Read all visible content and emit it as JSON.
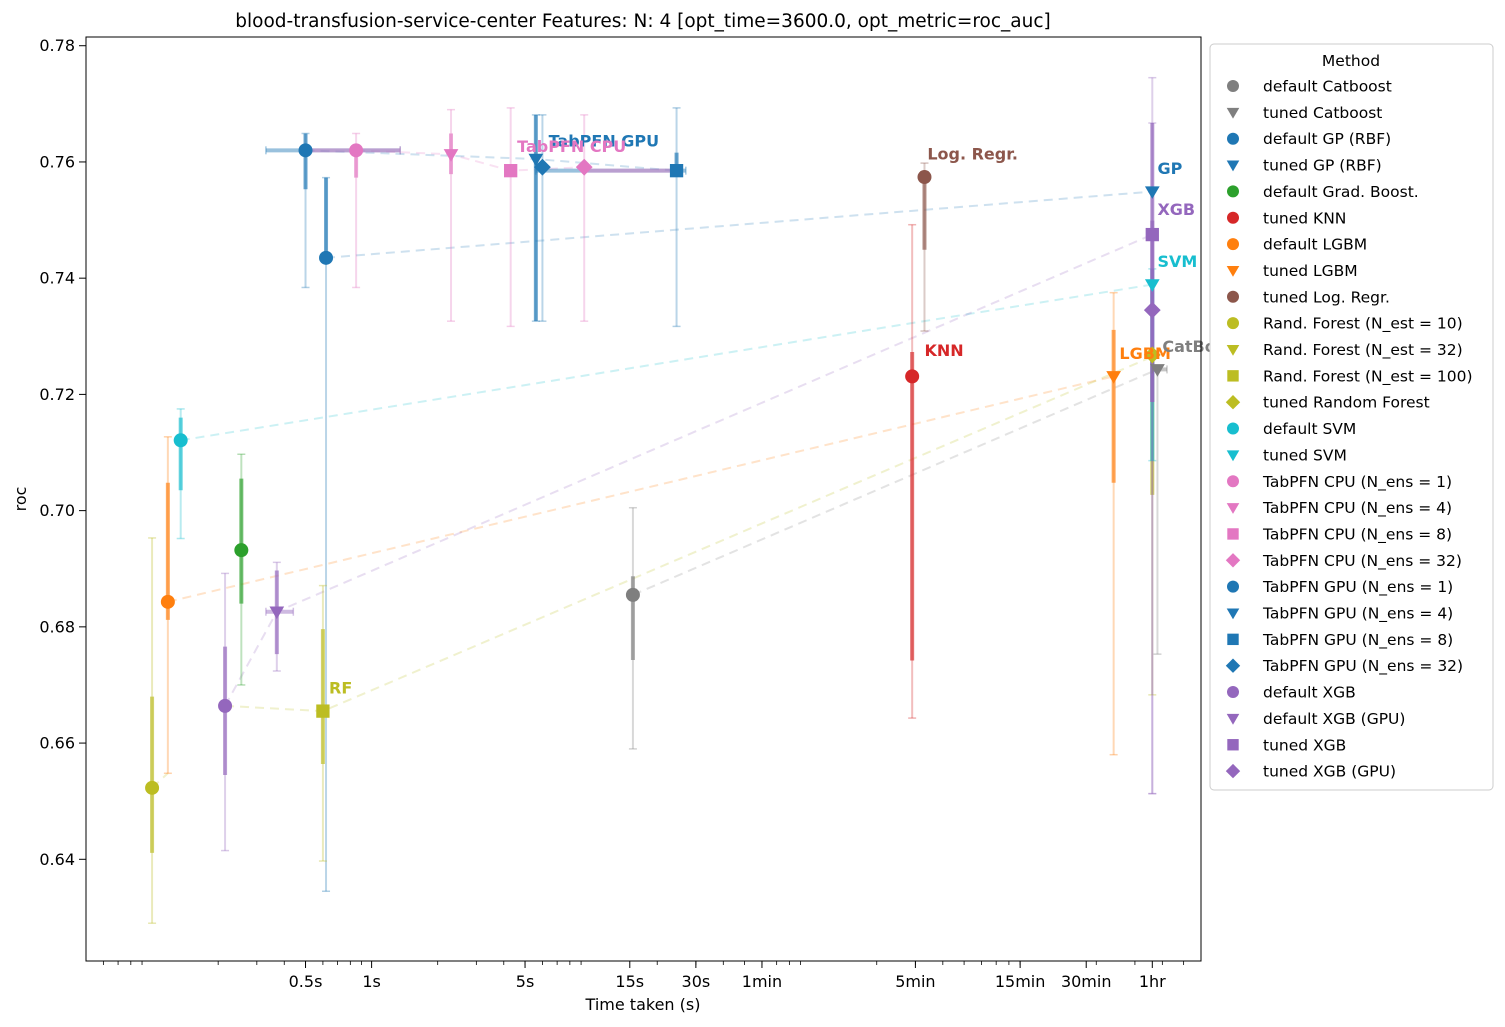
{
  "chart_data": {
    "type": "scatter",
    "title": "blood-transfusion-service-center Features: N: 4 [opt_time=3600.0, opt_metric=roc_auc]",
    "xlabel": "Time taken (s)",
    "ylabel": "roc",
    "x_scale": "log",
    "xlim": [
      0.05,
      6000
    ],
    "ylim": [
      0.6225,
      0.7815
    ],
    "grid": false,
    "x_ticks": [
      {
        "value": 0.5,
        "label": "0.5s"
      },
      {
        "value": 1,
        "label": "1s"
      },
      {
        "value": 5,
        "label": "5s"
      },
      {
        "value": 15,
        "label": "15s"
      },
      {
        "value": 30,
        "label": "30s"
      },
      {
        "value": 60,
        "label": "1min"
      },
      {
        "value": 300,
        "label": "5min"
      },
      {
        "value": 900,
        "label": "15min"
      },
      {
        "value": 1800,
        "label": "30min"
      },
      {
        "value": 3600,
        "label": "1hr"
      }
    ],
    "y_ticks": [
      {
        "value": 0.64,
        "label": "0.64"
      },
      {
        "value": 0.66,
        "label": "0.66"
      },
      {
        "value": 0.68,
        "label": "0.68"
      },
      {
        "value": 0.7,
        "label": "0.70"
      },
      {
        "value": 0.72,
        "label": "0.72"
      },
      {
        "value": 0.74,
        "label": "0.74"
      },
      {
        "value": 0.76,
        "label": "0.76"
      },
      {
        "value": 0.78,
        "label": "0.78"
      }
    ],
    "legend": {
      "title": "Method",
      "placement": "outside right"
    },
    "series": [
      {
        "name": "default Catboost",
        "color": "#7f7f7f",
        "marker": "circle",
        "x": 15.5,
        "y": 0.6855,
        "y_err": [
          [
            0.6743,
            0.6887
          ],
          [
            0.659,
            0.7005
          ]
        ]
      },
      {
        "name": "tuned Catboost",
        "color": "#7f7f7f",
        "marker": "triangle-down",
        "x": 3800,
        "y": 0.7243,
        "y_err": [
          [
            0.7245,
            0.7248
          ],
          [
            0.6753,
            0.7248
          ]
        ]
      },
      {
        "name": "default GP (RBF)",
        "color": "#1f77b4",
        "marker": "circle",
        "x": 0.62,
        "y": 0.7435,
        "y_err": [
          [
            0.7435,
            0.7573
          ],
          [
            0.6345,
            0.7573
          ]
        ]
      },
      {
        "name": "tuned GP (RBF)",
        "color": "#1f77b4",
        "marker": "triangle-down",
        "x": 3600,
        "y": 0.7549,
        "y_err": [
          [
            0.7549,
            0.7549
          ],
          [
            0.7549,
            0.7549
          ]
        ]
      },
      {
        "name": "default Grad. Boost.",
        "color": "#2ca02c",
        "marker": "circle",
        "x": 0.255,
        "y": 0.6932,
        "y_err": [
          [
            0.684,
            0.7055
          ],
          [
            0.67,
            0.7097
          ]
        ]
      },
      {
        "name": "tuned KNN",
        "color": "#d62728",
        "marker": "circle",
        "x": 290,
        "y": 0.7231,
        "y_err": [
          [
            0.6742,
            0.7273
          ],
          [
            0.6643,
            0.7492
          ]
        ]
      },
      {
        "name": "default LGBM",
        "color": "#ff7f0e",
        "marker": "circle",
        "x": 0.118,
        "y": 0.6843,
        "y_err": [
          [
            0.6812,
            0.7048
          ],
          [
            0.6548,
            0.7127
          ]
        ]
      },
      {
        "name": "tuned LGBM",
        "color": "#ff7f0e",
        "marker": "triangle-down",
        "x": 2400,
        "y": 0.7231,
        "y_err": [
          [
            0.7048,
            0.7311
          ],
          [
            0.658,
            0.7375
          ]
        ]
      },
      {
        "name": "tuned Log. Regr.",
        "color": "#8c564b",
        "marker": "circle",
        "x": 330,
        "y": 0.7574,
        "y_err": [
          [
            0.7449,
            0.7574
          ],
          [
            0.7309,
            0.7598
          ]
        ]
      },
      {
        "name": "Rand. Forest (N_est =  10)",
        "color": "#bcbd22",
        "marker": "circle",
        "x": 0.1,
        "y": 0.6523,
        "y_err": [
          [
            0.6411,
            0.668
          ],
          [
            0.629,
            0.6953
          ]
        ]
      },
      {
        "name": "Rand. Forest (N_est =  32)",
        "color": "#bcbd22",
        "marker": "triangle-down",
        "x": 3600,
        "y": 0.7265,
        "y_err": [
          [
            0.7027,
            0.727
          ],
          [
            0.6683,
            0.727
          ]
        ]
      },
      {
        "name": "Rand. Forest (N_est = 100)",
        "color": "#bcbd22",
        "marker": "square",
        "x": 0.6,
        "y": 0.6655,
        "y_err": [
          [
            0.6564,
            0.6796
          ],
          [
            0.6397,
            0.6871
          ]
        ]
      },
      {
        "name": "tuned Random Forest",
        "color": "#bcbd22",
        "marker": "diamond",
        "x": 3600,
        "y": 0.7268,
        "y_err": [
          [
            0.7268,
            0.7268
          ],
          [
            0.7268,
            0.7268
          ]
        ]
      },
      {
        "name": "default SVM",
        "color": "#17becf",
        "marker": "circle",
        "x": 0.135,
        "y": 0.7121,
        "y_err": [
          [
            0.7035,
            0.716
          ],
          [
            0.6952,
            0.7175
          ]
        ]
      },
      {
        "name": "tuned SVM",
        "color": "#17becf",
        "marker": "triangle-down",
        "x": 3600,
        "y": 0.7389,
        "y_err": [
          [
            0.7086,
            0.7416
          ],
          [
            0.7086,
            0.7416
          ]
        ]
      },
      {
        "name": "TabPFN CPU (N_ens =  1)",
        "color": "#e377c2",
        "marker": "circle",
        "x": 0.85,
        "y": 0.762,
        "y_err": [
          [
            0.7573,
            0.7629
          ],
          [
            0.7384,
            0.7649
          ]
        ]
      },
      {
        "name": "TabPFN CPU (N_ens =  4)",
        "color": "#e377c2",
        "marker": "triangle-down",
        "x": 2.3,
        "y": 0.7613,
        "y_err": [
          [
            0.7579,
            0.7649
          ],
          [
            0.7326,
            0.769
          ]
        ]
      },
      {
        "name": "TabPFN CPU (N_ens =  8)",
        "color": "#e377c2",
        "marker": "square",
        "x": 4.3,
        "y": 0.7585,
        "y_err": [
          [
            0.7585,
            0.7585
          ],
          [
            0.7317,
            0.7693
          ]
        ]
      },
      {
        "name": "TabPFN CPU (N_ens = 32)",
        "color": "#e377c2",
        "marker": "diamond",
        "x": 9.3,
        "y": 0.7591,
        "y_err": [
          [
            0.7585,
            0.7599
          ],
          [
            0.7326,
            0.7681
          ]
        ]
      },
      {
        "name": "TabPFN GPU (N_ens =  1)",
        "color": "#1f77b4",
        "marker": "circle",
        "x": 0.5,
        "y": 0.762,
        "y_err": [
          [
            0.7553,
            0.7649
          ],
          [
            0.7384,
            0.7649
          ]
        ]
      },
      {
        "name": "TabPFN GPU (N_ens =  4)",
        "color": "#1f77b4",
        "marker": "triangle-down",
        "x": 5.6,
        "y": 0.7605,
        "y_err": [
          [
            0.7326,
            0.7681
          ],
          [
            0.7326,
            0.7681
          ]
        ]
      },
      {
        "name": "TabPFN GPU (N_ens =  8)",
        "color": "#1f77b4",
        "marker": "square",
        "x": 24.5,
        "y": 0.7585,
        "y_err": [
          [
            0.7576,
            0.7616
          ],
          [
            0.7317,
            0.7693
          ]
        ]
      },
      {
        "name": "TabPFN GPU (N_ens = 32)",
        "color": "#1f77b4",
        "marker": "diamond",
        "x": 6.0,
        "y": 0.7591,
        "y_err": [
          [
            0.7585,
            0.7599
          ],
          [
            0.7326,
            0.7681
          ]
        ]
      },
      {
        "name": "default XGB",
        "color": "#9467bd",
        "marker": "circle",
        "x": 0.215,
        "y": 0.6664,
        "y_err": [
          [
            0.6545,
            0.6766
          ],
          [
            0.6415,
            0.6892
          ]
        ]
      },
      {
        "name": "default XGB (GPU)",
        "color": "#9467bd",
        "marker": "triangle-down",
        "x": 0.37,
        "y": 0.6826,
        "y_err": [
          [
            0.6753,
            0.6897
          ],
          [
            0.6724,
            0.6911
          ]
        ]
      },
      {
        "name": "tuned XGB",
        "color": "#9467bd",
        "marker": "square",
        "x": 3600,
        "y": 0.7475,
        "y_err": [
          [
            0.7187,
            0.7667
          ],
          [
            0.6513,
            0.7745
          ]
        ]
      },
      {
        "name": "tuned XGB (GPU)",
        "color": "#9467bd",
        "marker": "diamond",
        "x": 3600,
        "y": 0.7345,
        "y_err": [
          [
            0.7187,
            0.7499
          ],
          [
            0.6513,
            0.7667
          ]
        ]
      }
    ],
    "trend_lines": [
      {
        "color": "#1f77b4",
        "points": [
          [
            0.62,
            0.7435
          ],
          [
            3600,
            0.7549
          ]
        ]
      },
      {
        "color": "#17becf",
        "points": [
          [
            0.135,
            0.7121
          ],
          [
            3600,
            0.7389
          ]
        ]
      },
      {
        "color": "#ff7f0e",
        "points": [
          [
            0.118,
            0.6843
          ],
          [
            2400,
            0.7231
          ]
        ]
      },
      {
        "color": "#bcbd22",
        "points": [
          [
            0.1,
            0.6523
          ],
          [
            0.118,
            0.6548
          ]
        ]
      },
      {
        "color": "#bcbd22",
        "points": [
          [
            0.215,
            0.6664
          ],
          [
            0.6,
            0.6655
          ],
          [
            3600,
            0.7265
          ]
        ]
      },
      {
        "color": "#7f7f7f",
        "points": [
          [
            15.5,
            0.6855
          ],
          [
            3800,
            0.7243
          ]
        ]
      },
      {
        "color": "#9467bd",
        "points": [
          [
            0.215,
            0.6664
          ],
          [
            0.37,
            0.6826
          ],
          [
            3600,
            0.7475
          ]
        ]
      },
      {
        "color": "#e377c2",
        "points": [
          [
            0.85,
            0.762
          ],
          [
            2.3,
            0.7613
          ],
          [
            4.3,
            0.7585
          ],
          [
            9.3,
            0.7591
          ]
        ]
      },
      {
        "color": "#1f77b4",
        "points": [
          [
            0.5,
            0.762
          ],
          [
            5.6,
            0.7605
          ],
          [
            24.5,
            0.7585
          ]
        ]
      }
    ],
    "x_error_bars": [
      {
        "color": "#1f77b4",
        "y": 0.762,
        "x_err": [
          0.33,
          1.35
        ]
      },
      {
        "color": "#e377c2",
        "y": 0.762,
        "x_err": [
          0.5,
          1.35
        ]
      },
      {
        "color": "#1f77b4",
        "y": 0.7585,
        "x_err": [
          5.6,
          27
        ]
      },
      {
        "color": "#e377c2",
        "y": 0.7585,
        "x_err": [
          9.3,
          24
        ]
      },
      {
        "color": "#9467bd",
        "y": 0.6826,
        "x_err": [
          0.33,
          0.44
        ]
      },
      {
        "color": "#7f7f7f",
        "y": 0.7243,
        "x_err": [
          3600,
          4200
        ]
      }
    ],
    "annotations": [
      {
        "text": "TabPFN GPU",
        "color": "#1f77b4",
        "x": 6.4,
        "y": 0.7627
      },
      {
        "text": "TabPFN CPU",
        "color": "#e377c2",
        "x": 4.6,
        "y": 0.7617
      },
      {
        "text": "Log. Regr.",
        "color": "#8c564b",
        "x": 340,
        "y": 0.7604
      },
      {
        "text": "KNN",
        "color": "#d62728",
        "x": 330,
        "y": 0.7266
      },
      {
        "text": "GP",
        "color": "#1f77b4",
        "x": 3800,
        "y": 0.7579
      },
      {
        "text": "XGB",
        "color": "#9467bd",
        "x": 3800,
        "y": 0.7509
      },
      {
        "text": "SVM",
        "color": "#17becf",
        "x": 3800,
        "y": 0.7419
      },
      {
        "text": "LGBM",
        "color": "#ff7f0e",
        "x": 2550,
        "y": 0.7261
      },
      {
        "text": "CatBoost",
        "color": "#7f7f7f",
        "x": 4000,
        "y": 0.7273
      },
      {
        "text": "RF",
        "color": "#bcbd22",
        "x": 0.64,
        "y": 0.6685
      }
    ]
  }
}
